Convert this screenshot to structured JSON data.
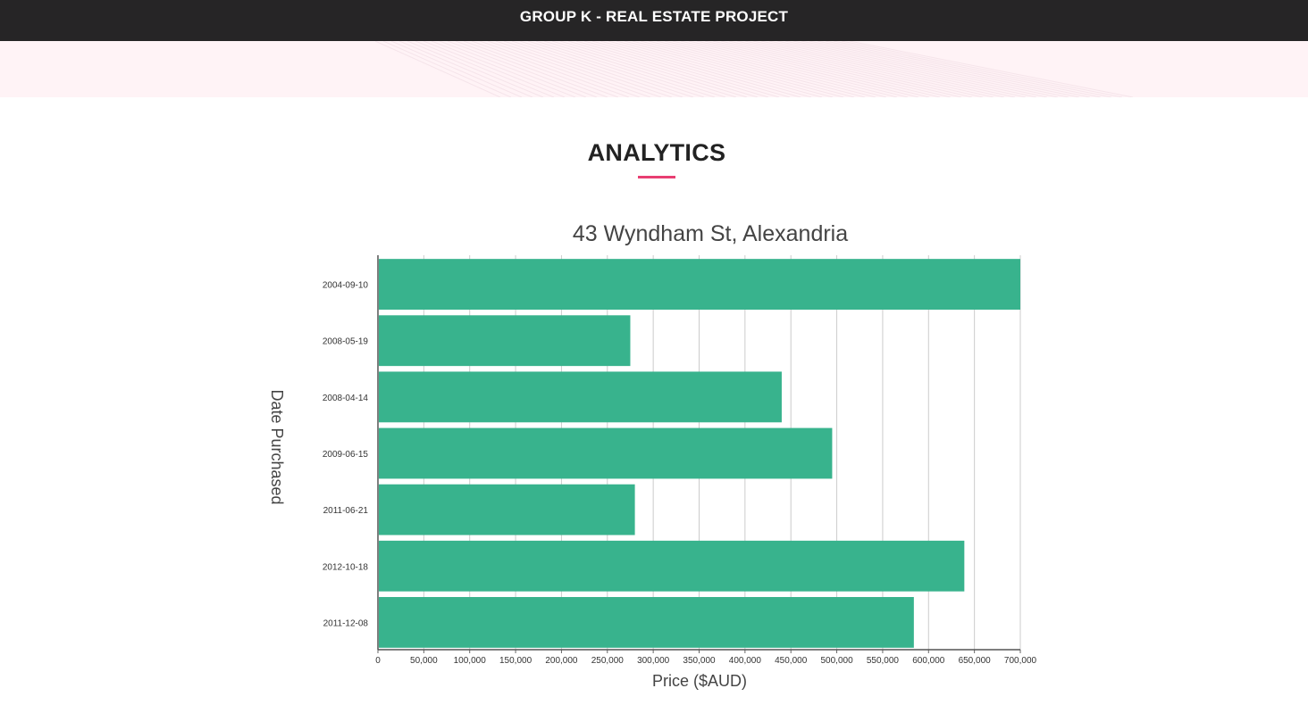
{
  "header": {
    "title": "GROUP K - REAL ESTATE PROJECT"
  },
  "section": {
    "title": "ANALYTICS"
  },
  "colors": {
    "header_bg": "#262526",
    "accent": "#e83e72",
    "bar": "#38b38d",
    "band_bg": "#fff3f6"
  },
  "chart_data": {
    "type": "bar",
    "orientation": "horizontal",
    "title": "43 Wyndham St, Alexandria",
    "xlabel": "Price ($AUD)",
    "ylabel": "Date Purchased",
    "categories": [
      "2004-09-10",
      "2008-05-19",
      "2008-04-14",
      "2009-06-15",
      "2011-06-21",
      "2012-10-18",
      "2011-12-08"
    ],
    "values": [
      700000,
      275000,
      440000,
      495000,
      280000,
      639000,
      584000
    ],
    "xlim": [
      0,
      700000
    ],
    "xticks": [
      0,
      50000,
      100000,
      150000,
      200000,
      250000,
      300000,
      350000,
      400000,
      450000,
      500000,
      550000,
      600000,
      650000,
      700000
    ],
    "xtick_labels": [
      "0",
      "50,000",
      "100,000",
      "150,000",
      "200,000",
      "250,000",
      "300,000",
      "350,000",
      "400,000",
      "450,000",
      "500,000",
      "550,000",
      "600,000",
      "650,000",
      "700,000"
    ],
    "grid": "vertical",
    "legend": "none"
  }
}
